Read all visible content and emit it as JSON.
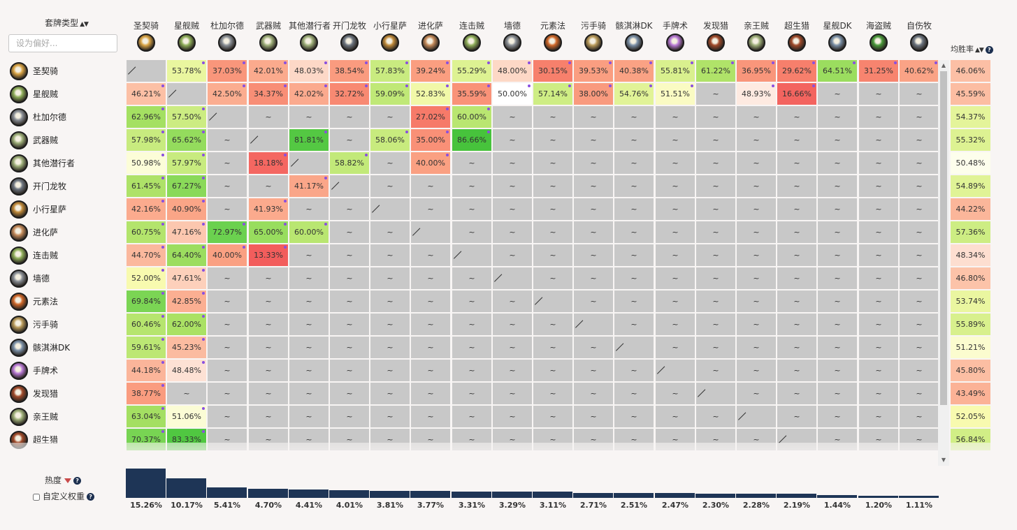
{
  "header": {
    "deck_type_label": "套牌类型",
    "sort_arrows": "▲▼",
    "search_placeholder": "设为偏好...",
    "winrate_label": "均胜率",
    "help_glyph": "?"
  },
  "columns": [
    "圣契骑",
    "星舰贼",
    "杜加尔德",
    "武器贼",
    "其他潜行者",
    "开门龙牧",
    "小行星萨",
    "进化萨",
    "连击贼",
    "墙德",
    "元素法",
    "污手骑",
    "骸淇淋DK",
    "手牌术",
    "发现猎",
    "亲王贼",
    "超生猎",
    "星舰DK",
    "海盗贼",
    "自伤牧"
  ],
  "icon_colors": [
    "#d9a445",
    "#8fae5a",
    "#8a8f96",
    "#9fb07a",
    "#9fb07a",
    "#6d7580",
    "#c08a3a",
    "#c48a5a",
    "#8fae5a",
    "#8a8f96",
    "#d0682a",
    "#b89a5a",
    "#7a8fa6",
    "#b97ad6",
    "#a04a2a",
    "#9fb07a",
    "#a04a2a",
    "#7a8fa6",
    "#4a9a3a",
    "#6d7580"
  ],
  "rows": [
    {
      "name": "圣契骑",
      "cells": [
        "/",
        "53.78%",
        "37.03%",
        "42.01%",
        "48.03%",
        "38.54%",
        "57.83%",
        "39.24%",
        "55.29%",
        "48.00%",
        "30.15%",
        "39.53%",
        "40.38%",
        "55.81%",
        "61.22%",
        "36.95%",
        "29.62%",
        "64.51%",
        "31.25%",
        "40.62%"
      ],
      "dots": [
        1,
        2,
        3,
        4,
        5,
        6,
        7,
        8,
        9,
        10,
        11,
        12,
        13,
        14,
        15,
        16,
        17,
        18,
        19
      ],
      "winrate": "46.06%"
    },
    {
      "name": "星舰贼",
      "cells": [
        "46.21%",
        "/",
        "42.50%",
        "34.37%",
        "42.02%",
        "32.72%",
        "59.09%",
        "52.83%",
        "35.59%",
        "50.00%",
        "57.14%",
        "38.00%",
        "54.76%",
        "51.51%",
        "~",
        "48.93%",
        "16.66%",
        "~",
        "~",
        "~"
      ],
      "dots": [
        0,
        2,
        3,
        4,
        5,
        6,
        7,
        8,
        9,
        10,
        11,
        12,
        13,
        15,
        16
      ],
      "winrate": "45.59%"
    },
    {
      "name": "杜加尔德",
      "cells": [
        "62.96%",
        "57.50%",
        "/",
        "~",
        "~",
        "~",
        "~",
        "27.02%",
        "60.00%",
        "~",
        "~",
        "~",
        "~",
        "~",
        "~",
        "~",
        "~",
        "~",
        "~",
        "~"
      ],
      "dots": [
        0,
        1,
        7,
        8
      ],
      "winrate": "54.37%"
    },
    {
      "name": "武器贼",
      "cells": [
        "57.98%",
        "65.62%",
        "~",
        "/",
        "81.81%",
        "~",
        "58.06%",
        "35.00%",
        "86.66%",
        "~",
        "~",
        "~",
        "~",
        "~",
        "~",
        "~",
        "~",
        "~",
        "~",
        "~"
      ],
      "dots": [
        0,
        1,
        4,
        6,
        7,
        8
      ],
      "winrate": "55.32%"
    },
    {
      "name": "其他潜行者",
      "cells": [
        "50.98%",
        "57.97%",
        "~",
        "18.18%",
        "/",
        "58.82%",
        "~",
        "40.00%",
        "~",
        "~",
        "~",
        "~",
        "~",
        "~",
        "~",
        "~",
        "~",
        "~",
        "~",
        "~"
      ],
      "dots": [
        0,
        1,
        3,
        5,
        7
      ],
      "winrate": "50.48%"
    },
    {
      "name": "开门龙牧",
      "cells": [
        "61.45%",
        "67.27%",
        "~",
        "~",
        "41.17%",
        "/",
        "~",
        "~",
        "~",
        "~",
        "~",
        "~",
        "~",
        "~",
        "~",
        "~",
        "~",
        "~",
        "~",
        "~"
      ],
      "dots": [
        0,
        1,
        4
      ],
      "winrate": "54.89%"
    },
    {
      "name": "小行星萨",
      "cells": [
        "42.16%",
        "40.90%",
        "~",
        "41.93%",
        "~",
        "~",
        "/",
        "~",
        "~",
        "~",
        "~",
        "~",
        "~",
        "~",
        "~",
        "~",
        "~",
        "~",
        "~",
        "~"
      ],
      "dots": [
        0,
        1,
        3
      ],
      "winrate": "44.22%"
    },
    {
      "name": "进化萨",
      "cells": [
        "60.75%",
        "47.16%",
        "72.97%",
        "65.00%",
        "60.00%",
        "~",
        "~",
        "/",
        "~",
        "~",
        "~",
        "~",
        "~",
        "~",
        "~",
        "~",
        "~",
        "~",
        "~",
        "~"
      ],
      "dots": [
        0,
        1,
        2,
        3,
        4
      ],
      "winrate": "57.36%"
    },
    {
      "name": "连击贼",
      "cells": [
        "44.70%",
        "64.40%",
        "40.00%",
        "13.33%",
        "~",
        "~",
        "~",
        "~",
        "/",
        "~",
        "~",
        "~",
        "~",
        "~",
        "~",
        "~",
        "~",
        "~",
        "~",
        "~"
      ],
      "dots": [
        0,
        1,
        2,
        3
      ],
      "winrate": "48.34%"
    },
    {
      "name": "墙德",
      "cells": [
        "52.00%",
        "47.61%",
        "~",
        "~",
        "~",
        "~",
        "~",
        "~",
        "~",
        "/",
        "~",
        "~",
        "~",
        "~",
        "~",
        "~",
        "~",
        "~",
        "~",
        "~"
      ],
      "dots": [
        0,
        1
      ],
      "winrate": "46.80%"
    },
    {
      "name": "元素法",
      "cells": [
        "69.84%",
        "42.85%",
        "~",
        "~",
        "~",
        "~",
        "~",
        "~",
        "~",
        "~",
        "/",
        "~",
        "~",
        "~",
        "~",
        "~",
        "~",
        "~",
        "~",
        "~"
      ],
      "dots": [
        0,
        1
      ],
      "winrate": "53.74%"
    },
    {
      "name": "污手骑",
      "cells": [
        "60.46%",
        "62.00%",
        "~",
        "~",
        "~",
        "~",
        "~",
        "~",
        "~",
        "~",
        "~",
        "/",
        "~",
        "~",
        "~",
        "~",
        "~",
        "~",
        "~",
        "~"
      ],
      "dots": [
        0,
        1
      ],
      "winrate": "55.89%"
    },
    {
      "name": "骸淇淋DK",
      "cells": [
        "59.61%",
        "45.23%",
        "~",
        "~",
        "~",
        "~",
        "~",
        "~",
        "~",
        "~",
        "~",
        "~",
        "/",
        "~",
        "~",
        "~",
        "~",
        "~",
        "~",
        "~"
      ],
      "dots": [
        0,
        1
      ],
      "winrate": "51.21%"
    },
    {
      "name": "手牌术",
      "cells": [
        "44.18%",
        "48.48%",
        "~",
        "~",
        "~",
        "~",
        "~",
        "~",
        "~",
        "~",
        "~",
        "~",
        "~",
        "/",
        "~",
        "~",
        "~",
        "~",
        "~",
        "~"
      ],
      "dots": [
        0,
        1
      ],
      "winrate": "45.80%"
    },
    {
      "name": "发现猎",
      "cells": [
        "38.77%",
        "~",
        "~",
        "~",
        "~",
        "~",
        "~",
        "~",
        "~",
        "~",
        "~",
        "~",
        "~",
        "~",
        "/",
        "~",
        "~",
        "~",
        "~",
        "~"
      ],
      "dots": [
        0
      ],
      "winrate": "43.49%"
    },
    {
      "name": "亲王贼",
      "cells": [
        "63.04%",
        "51.06%",
        "~",
        "~",
        "~",
        "~",
        "~",
        "~",
        "~",
        "~",
        "~",
        "~",
        "~",
        "~",
        "~",
        "/",
        "~",
        "~",
        "~",
        "~"
      ],
      "dots": [
        0,
        1
      ],
      "winrate": "52.05%"
    },
    {
      "name": "超生猎",
      "cells": [
        "70.37%",
        "83.33%",
        "~",
        "~",
        "~",
        "~",
        "~",
        "~",
        "~",
        "~",
        "~",
        "~",
        "~",
        "~",
        "~",
        "~",
        "/",
        "~",
        "~",
        "~"
      ],
      "dots": [
        0,
        1
      ],
      "winrate": "56.84%"
    }
  ],
  "footer": {
    "popularity_label": "热度",
    "custom_weight_label": "自定义权重",
    "popularity": [
      "15.26%",
      "10.17%",
      "5.41%",
      "4.70%",
      "4.41%",
      "4.01%",
      "3.81%",
      "3.77%",
      "3.31%",
      "3.29%",
      "3.11%",
      "2.71%",
      "2.51%",
      "2.47%",
      "2.30%",
      "2.28%",
      "2.19%",
      "1.44%",
      "1.20%",
      "1.11%"
    ],
    "popularity_values": [
      15.26,
      10.17,
      5.41,
      4.7,
      4.41,
      4.01,
      3.81,
      3.77,
      3.31,
      3.29,
      3.11,
      2.71,
      2.51,
      2.47,
      2.3,
      2.28,
      2.19,
      1.44,
      1.2,
      1.11
    ]
  }
}
